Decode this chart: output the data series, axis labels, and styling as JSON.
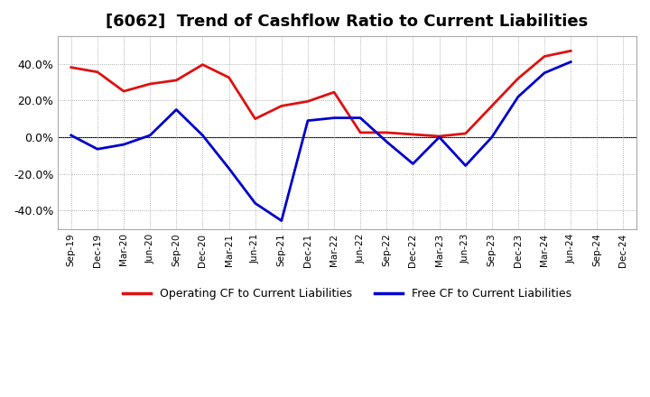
{
  "title": "[6062]  Trend of Cashflow Ratio to Current Liabilities",
  "x_labels": [
    "Sep-19",
    "Dec-19",
    "Mar-20",
    "Jun-20",
    "Sep-20",
    "Dec-20",
    "Mar-21",
    "Jun-21",
    "Sep-21",
    "Dec-21",
    "Mar-22",
    "Jun-22",
    "Sep-22",
    "Dec-22",
    "Mar-23",
    "Jun-23",
    "Sep-23",
    "Dec-23",
    "Mar-24",
    "Jun-24",
    "Sep-24",
    "Dec-24"
  ],
  "operating_cf_x": [
    0,
    1,
    2,
    3,
    4,
    5,
    6,
    7,
    8,
    9,
    10,
    11,
    12,
    13,
    14,
    15,
    16,
    17,
    18,
    19
  ],
  "operating_cf_y": [
    0.38,
    0.355,
    0.25,
    0.29,
    0.31,
    0.395,
    0.325,
    0.1,
    0.17,
    0.195,
    0.245,
    0.025,
    0.025,
    0.015,
    0.005,
    0.02,
    0.17,
    0.32,
    0.44,
    0.47
  ],
  "free_cf_x": [
    0,
    1,
    2,
    3,
    4,
    5,
    6,
    7,
    8,
    9,
    10,
    11,
    12,
    13,
    14,
    15,
    16,
    17,
    18,
    19
  ],
  "free_cf_y": [
    0.01,
    -0.065,
    -0.04,
    0.01,
    0.15,
    0.01,
    -0.17,
    -0.36,
    -0.455,
    0.09,
    0.105,
    0.105,
    -0.025,
    -0.145,
    0.0,
    -0.155,
    0.0,
    0.22,
    0.35,
    0.41
  ],
  "operating_cf_color": "#e01010",
  "free_cf_color": "#0000cc",
  "background_color": "#ffffff",
  "plot_bg_color": "#ffffff",
  "grid_color": "#999999",
  "ylim": [
    -0.5,
    0.55
  ],
  "yticks": [
    -0.4,
    -0.2,
    0.0,
    0.2,
    0.4
  ],
  "legend_operating": "Operating CF to Current Liabilities",
  "legend_free": "Free CF to Current Liabilities",
  "title_fontsize": 13,
  "linewidth": 2.0
}
